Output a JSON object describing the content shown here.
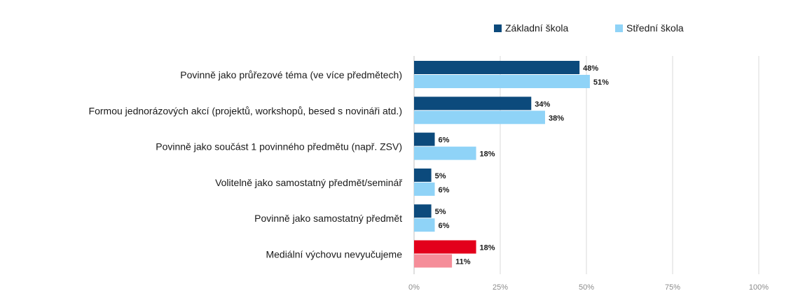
{
  "chart_data": {
    "type": "bar",
    "orientation": "horizontal",
    "categories": [
      "Povinně jako průřezové téma (ve více předmětech)",
      "Formou jednorázových akcí (projektů, workshopů, besed s novináři atd.)",
      "Povinně jako součást 1 povinného předmětu (např. ZSV)",
      "Volitelně jako samostatný předmět/seminář",
      "Povinně jako samostatný předmět",
      "Mediální výchovu nevyučujeme"
    ],
    "series": [
      {
        "name": "Základní škola",
        "color": "#0c4a7c",
        "values": [
          48,
          34,
          6,
          5,
          5,
          18
        ],
        "labels": [
          "48%",
          "34%",
          "6%",
          "5%",
          "5%",
          "18%"
        ]
      },
      {
        "name": "Střední škola",
        "color": "#8fd3f7",
        "values": [
          51,
          38,
          18,
          6,
          6,
          11
        ],
        "labels": [
          "51%",
          "38%",
          "18%",
          "6%",
          "6%",
          "11%"
        ]
      }
    ],
    "highlight": {
      "category_index": 5,
      "colors": [
        "#e3001b",
        "#f58d99"
      ]
    },
    "xlim": [
      0,
      100
    ],
    "xticks": [
      0,
      25,
      50,
      75,
      100
    ],
    "xtick_labels": [
      "0%",
      "25%",
      "50%",
      "75%",
      "100%"
    ],
    "grid": true,
    "legend_position": "top-right"
  }
}
